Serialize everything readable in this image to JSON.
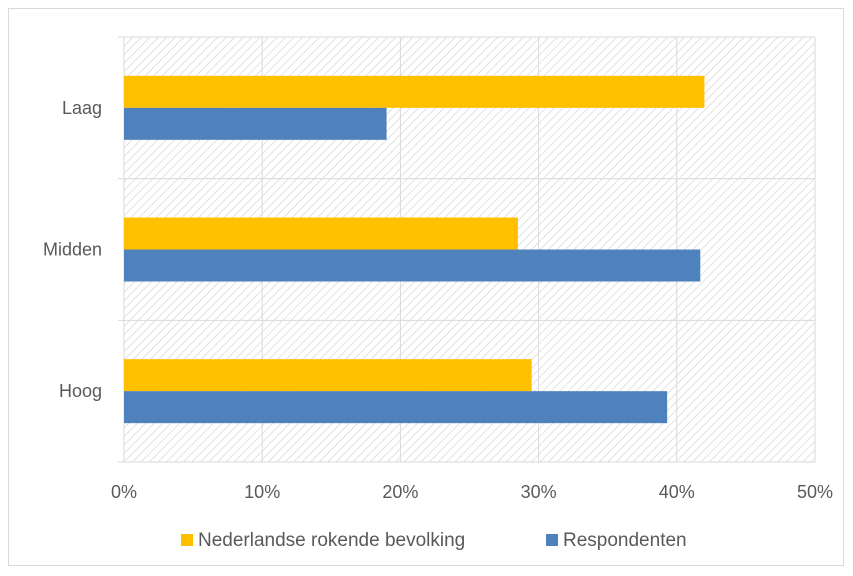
{
  "chart_data": {
    "type": "bar",
    "orientation": "horizontal",
    "categories": [
      "Laag",
      "Midden",
      "Hoog"
    ],
    "series": [
      {
        "name": "Nederlandse rokende bevolking",
        "color": "#FFC000",
        "values": [
          0.42,
          0.285,
          0.295
        ]
      },
      {
        "name": "Respondenten",
        "color": "#4F81BD",
        "values": [
          0.19,
          0.417,
          0.393
        ]
      }
    ],
    "x_ticks": [
      "0%",
      "10%",
      "20%",
      "30%",
      "40%",
      "50%"
    ],
    "xlim": [
      0,
      0.5
    ],
    "grid": true,
    "plot_background": "hatched",
    "legend_position": "bottom"
  }
}
